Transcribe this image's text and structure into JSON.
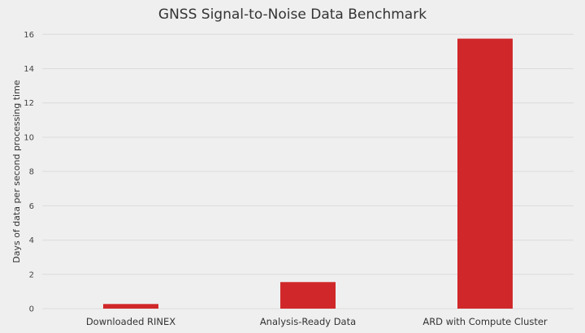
{
  "chart_data": {
    "type": "bar",
    "title": "GNSS Signal-to-Noise Data Benchmark",
    "xlabel": "",
    "ylabel": "Days of data per second processing time",
    "categories": [
      "Downloaded RINEX",
      "Analysis-Ready Data",
      "ARD with Compute Cluster"
    ],
    "values": [
      0.27,
      1.55,
      15.75
    ],
    "ylim": [
      0,
      16
    ],
    "yticks": [
      0,
      2,
      4,
      6,
      8,
      10,
      12,
      14,
      16
    ],
    "ytick_labels": [
      "0",
      "2",
      "4",
      "6",
      "8",
      "10",
      "12",
      "14",
      "16"
    ],
    "grid": true,
    "bar_color": "#d0282a"
  }
}
